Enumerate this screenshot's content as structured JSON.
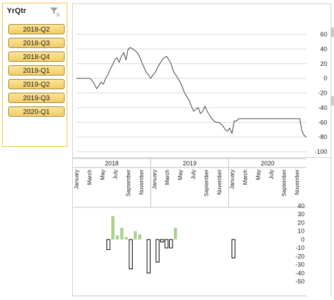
{
  "slicer": {
    "title": "YrQtr",
    "items": [
      "2018-Q2",
      "2018-Q3",
      "2018-Q4",
      "2019-Q1",
      "2019-Q2",
      "2019-Q3",
      "2020-Q1"
    ]
  },
  "axis": {
    "years": [
      "2018",
      "2019",
      "2020"
    ],
    "months": [
      "January",
      "March",
      "May",
      "July",
      "September",
      "November",
      "January",
      "March",
      "May",
      "July",
      "September",
      "November",
      "January",
      "March",
      "May",
      "July",
      "September",
      "November"
    ]
  },
  "chart_data": [
    {
      "type": "line",
      "ylim": [
        -100,
        60
      ],
      "yticks": [
        60,
        40,
        20,
        0,
        -20,
        -40,
        -60,
        -80,
        -100
      ],
      "y": [
        0,
        0,
        0,
        0,
        0,
        0,
        0,
        -3,
        -8,
        -14,
        -10,
        -5,
        -8,
        0,
        5,
        12,
        18,
        25,
        28,
        22,
        30,
        35,
        25,
        40,
        42,
        40,
        38,
        35,
        30,
        22,
        15,
        8,
        5,
        0,
        5,
        8,
        15,
        20,
        25,
        28,
        30,
        25,
        20,
        10,
        5,
        0,
        -5,
        -12,
        -20,
        -25,
        -30,
        -38,
        -45,
        -42,
        -40,
        -48,
        -45,
        -38,
        -45,
        -50,
        -55,
        -58,
        -60,
        -60,
        -62,
        -65,
        -70,
        -72,
        -68,
        -75,
        -58,
        -58,
        -55,
        -55,
        -55,
        -55,
        -55,
        -55,
        -55,
        -55,
        -55,
        -55,
        -55,
        -55,
        -55,
        -55,
        -55,
        -55,
        -55,
        -55,
        -55,
        -55,
        -55,
        -55,
        -55,
        -55,
        -55,
        -55,
        -55,
        -55,
        -72,
        -78,
        -80
      ]
    },
    {
      "type": "bar",
      "ylim": [
        -50,
        40
      ],
      "yticks": [
        40,
        30,
        20,
        10,
        0,
        -10,
        -20,
        -30,
        -40,
        -50
      ],
      "values": [
        0,
        0,
        0,
        0,
        0,
        0,
        0,
        -12,
        28,
        5,
        14,
        3,
        -35,
        10,
        6,
        0,
        -40,
        0,
        -27,
        -3,
        -10,
        -10,
        14,
        0,
        0,
        0,
        0,
        0,
        0,
        0,
        0,
        0,
        0,
        0,
        0,
        -22,
        0,
        0,
        0,
        0,
        0,
        0,
        0,
        0,
        0,
        0,
        0,
        0,
        0,
        0
      ]
    }
  ],
  "colors": {
    "positive": "#a9d18e",
    "negative": "#ffffff",
    "negative_stroke": "#000000",
    "line": "#404040",
    "grid": "#d9d9d9"
  }
}
